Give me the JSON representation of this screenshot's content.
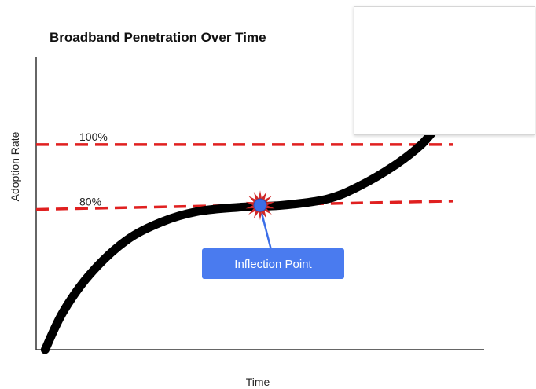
{
  "chart_data": {
    "type": "line",
    "title": "Broadband Penetration Over Time",
    "xlabel": "Time",
    "ylabel": "Adoption Rate",
    "grid": false,
    "legend": "none",
    "series": [
      {
        "color": "#000000",
        "points": [
          [
            0.02,
            0.0
          ],
          [
            0.06,
            0.18
          ],
          [
            0.12,
            0.36
          ],
          [
            0.2,
            0.52
          ],
          [
            0.28,
            0.61
          ],
          [
            0.36,
            0.66
          ],
          [
            0.45,
            0.68
          ],
          [
            0.55,
            0.69
          ],
          [
            0.65,
            0.72
          ],
          [
            0.72,
            0.78
          ],
          [
            0.8,
            0.88
          ],
          [
            0.86,
            0.98
          ],
          [
            0.9,
            1.08
          ]
        ]
      }
    ],
    "xlim": [
      0,
      1
    ],
    "ylim": [
      0,
      1.4
    ],
    "reference_lines": [
      {
        "label": "100%",
        "y_start": 0.98,
        "y_end": 0.98,
        "color": "#e02020"
      },
      {
        "label": "80%",
        "y_start": 0.67,
        "y_end": 0.71,
        "color": "#e02020"
      }
    ],
    "annotations": [
      {
        "label": "Inflection Point",
        "x": 0.5,
        "y": 0.69,
        "marker_color": "#3b6ee8",
        "burst_color": "#d02828",
        "box_color": "#4a7bef"
      }
    ]
  }
}
